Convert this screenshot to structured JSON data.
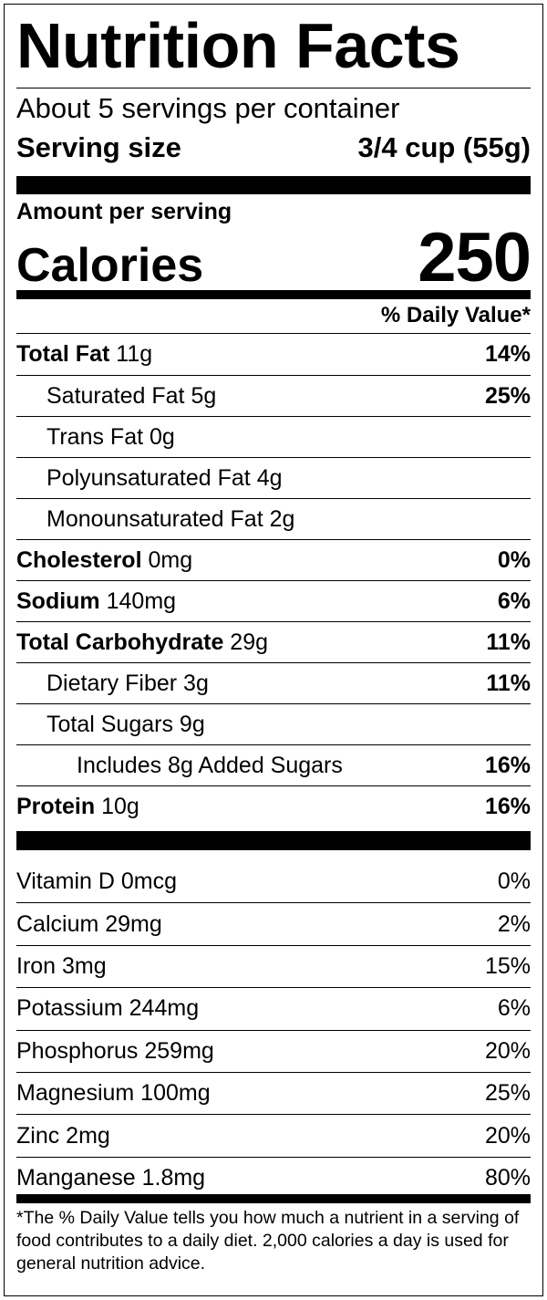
{
  "title": "Nutrition Facts",
  "servings_per_container": "About 5 servings per container",
  "serving_size": {
    "label": "Serving size",
    "value": "3/4 cup (55g)"
  },
  "amount_per_serving": "Amount per serving",
  "calories": {
    "label": "Calories",
    "value": "250"
  },
  "daily_value_header": "% Daily Value*",
  "nutrients": [
    {
      "name": "Total Fat",
      "amount": "11g",
      "dv": "14%",
      "bold": true,
      "indent": 0
    },
    {
      "name": "Saturated Fat",
      "amount": "5g",
      "dv": "25%",
      "bold": false,
      "indent": 1
    },
    {
      "name": "Trans Fat",
      "amount": "0g",
      "dv": "",
      "bold": false,
      "indent": 1
    },
    {
      "name": "Polyunsaturated Fat",
      "amount": "4g",
      "dv": "",
      "bold": false,
      "indent": 1
    },
    {
      "name": "Monounsaturated Fat",
      "amount": "2g",
      "dv": "",
      "bold": false,
      "indent": 1
    },
    {
      "name": "Cholesterol",
      "amount": "0mg",
      "dv": "0%",
      "bold": true,
      "indent": 0
    },
    {
      "name": "Sodium",
      "amount": "140mg",
      "dv": "6%",
      "bold": true,
      "indent": 0
    },
    {
      "name": "Total Carbohydrate",
      "amount": "29g",
      "dv": "11%",
      "bold": true,
      "indent": 0
    },
    {
      "name": "Dietary Fiber",
      "amount": "3g",
      "dv": "11%",
      "bold": false,
      "indent": 1
    },
    {
      "name": "Total Sugars",
      "amount": "9g",
      "dv": "",
      "bold": false,
      "indent": 1
    },
    {
      "name": "Includes 8g Added Sugars",
      "amount": "",
      "dv": "16%",
      "bold": false,
      "indent": 2
    },
    {
      "name": "Protein",
      "amount": "10g",
      "dv": "16%",
      "bold": true,
      "indent": 0
    }
  ],
  "vitamins": [
    {
      "text": "Vitamin D 0mcg",
      "dv": "0%"
    },
    {
      "text": "Calcium 29mg",
      "dv": "2%"
    },
    {
      "text": "Iron 3mg",
      "dv": "15%"
    },
    {
      "text": "Potassium 244mg",
      "dv": "6%"
    },
    {
      "text": "Phosphorus 259mg",
      "dv": "20%"
    },
    {
      "text": "Magnesium 100mg",
      "dv": "25%"
    },
    {
      "text": "Zinc 2mg",
      "dv": "20%"
    },
    {
      "text": "Manganese 1.8mg",
      "dv": "80%"
    }
  ],
  "footnote": "*The % Daily Value tells you how much a nutrient in a serving of food contributes to a daily diet. 2,000 calories a day is used for general nutrition advice."
}
